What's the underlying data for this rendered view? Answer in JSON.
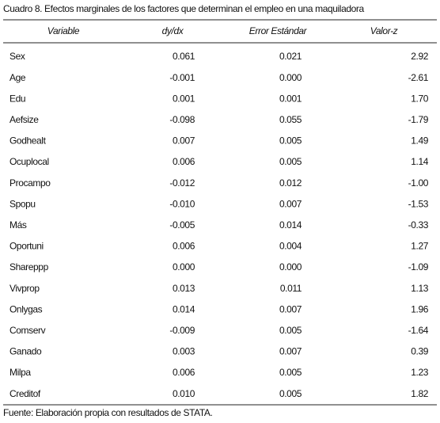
{
  "title": "Cuadro 8. Efectos marginales de los factores que determinan el empleo en una maquiladora",
  "table": {
    "columns": [
      "Variable",
      "dy/dx",
      "Error Estándar",
      "Valor-z"
    ],
    "rows": [
      [
        "Sex",
        "0.061",
        "0.021",
        "2.92"
      ],
      [
        "Age",
        "-0.001",
        "0.000",
        "-2.61"
      ],
      [
        "Edu",
        "0.001",
        "0.001",
        "1.70"
      ],
      [
        "Aefsize",
        "-0.098",
        "0.055",
        "-1.79"
      ],
      [
        "Godhealt",
        "0.007",
        "0.005",
        "1.49"
      ],
      [
        "Ocuplocal",
        "0.006",
        "0.005",
        "1.14"
      ],
      [
        "Procampo",
        "-0.012",
        "0.012",
        "-1.00"
      ],
      [
        "Spopu",
        "-0.010",
        "0.007",
        "-1.53"
      ],
      [
        "Más",
        "-0.005",
        "0.014",
        "-0.33"
      ],
      [
        "Oportuni",
        "0.006",
        "0.004",
        "1.27"
      ],
      [
        "Shareppp",
        "0.000",
        "0.000",
        "-1.09"
      ],
      [
        "Vivprop",
        "0.013",
        "0.011",
        "1.13"
      ],
      [
        "Onlygas",
        "0.014",
        "0.007",
        "1.96"
      ],
      [
        "Comserv",
        "-0.009",
        "0.005",
        "-1.64"
      ],
      [
        "Ganado",
        "0.003",
        "0.007",
        "0.39"
      ],
      [
        "Milpa",
        "0.006",
        "0.005",
        "1.23"
      ],
      [
        "Creditof",
        "0.010",
        "0.005",
        "1.82"
      ]
    ]
  },
  "footnote": "Fuente: Elaboración propia con resultados de STATA."
}
